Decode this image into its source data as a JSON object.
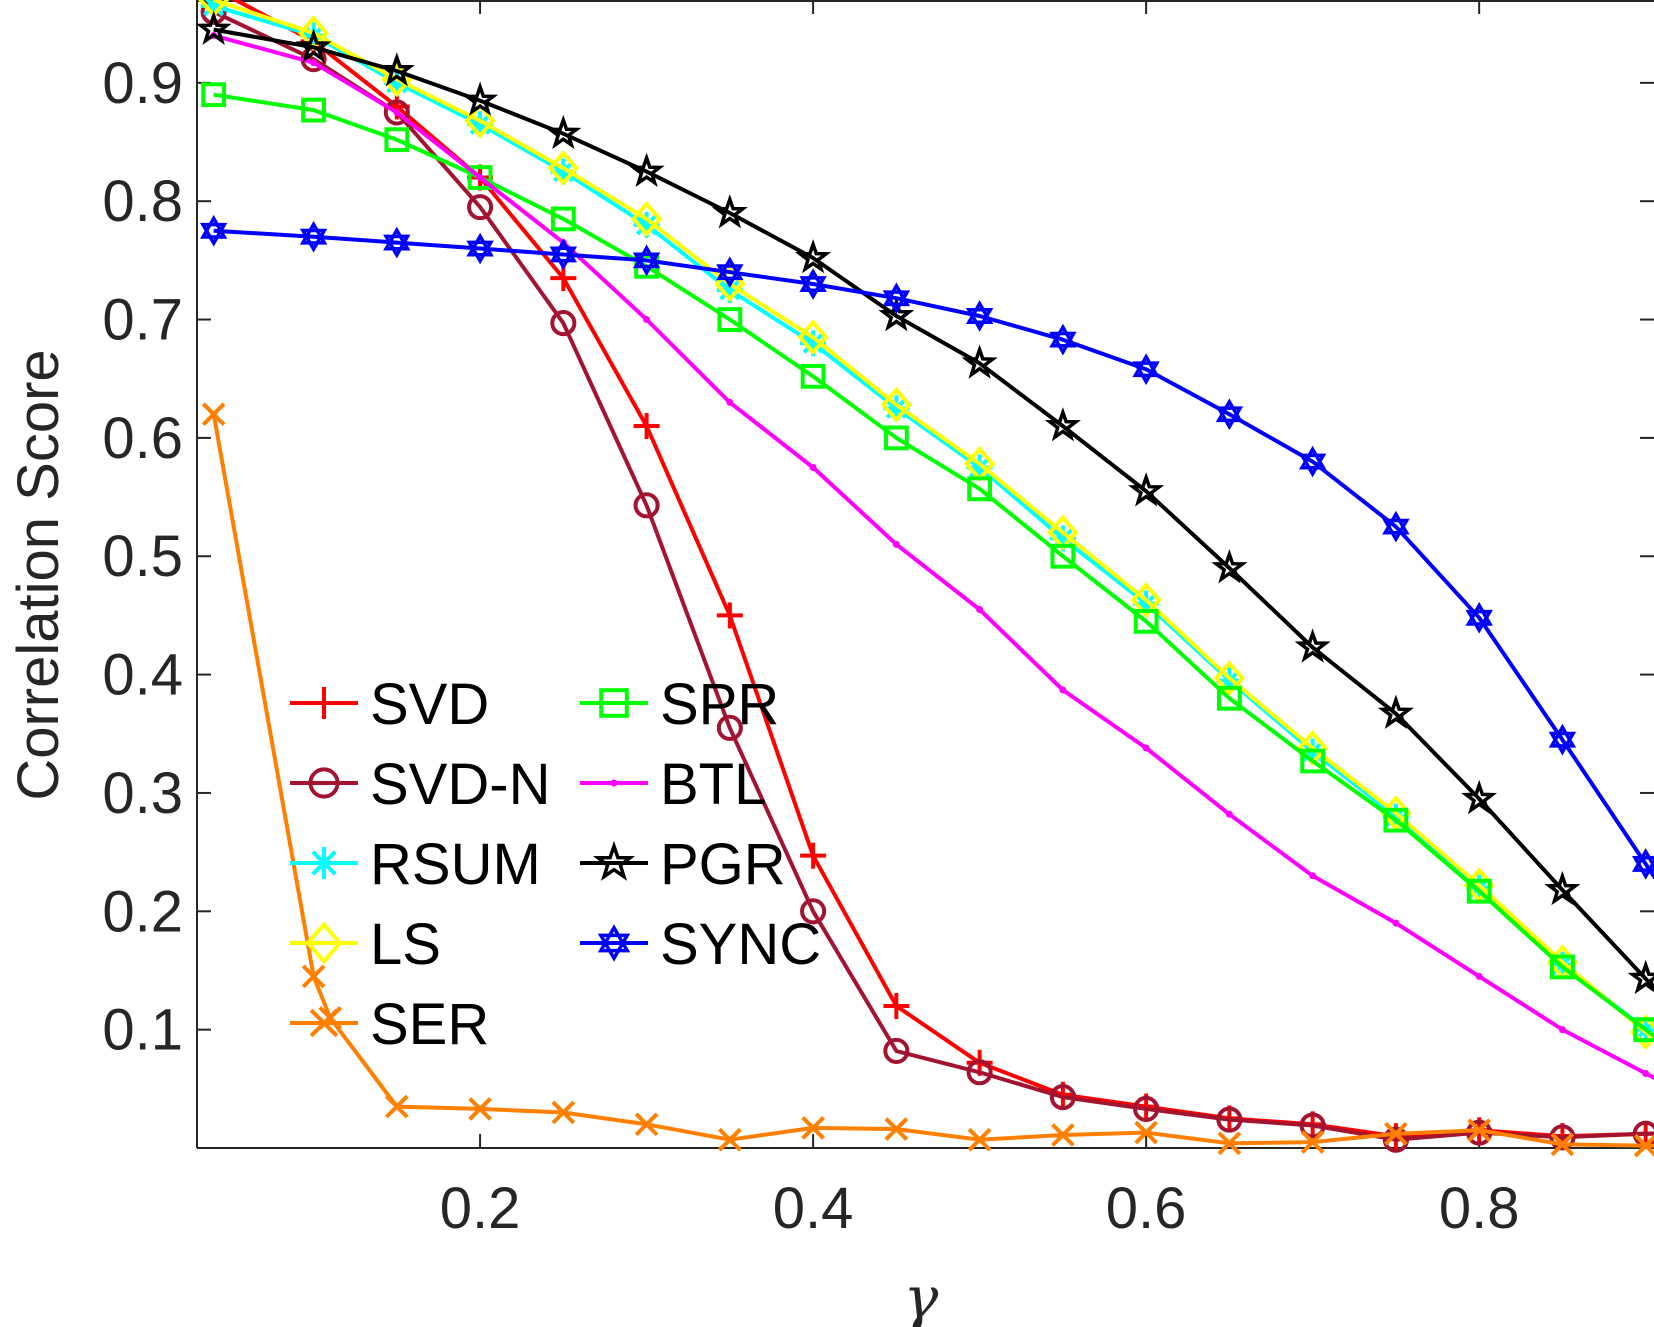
{
  "chart_data": {
    "type": "line",
    "xlabel": "γ",
    "ylabel": "Correlation Score",
    "xlim": [
      0.03,
      0.905
    ],
    "ylim": [
      0,
      0.97
    ],
    "xticks": [
      0.2,
      0.4,
      0.6,
      0.8
    ],
    "xtick_labels": [
      "0.2",
      "0.4",
      "0.6",
      "0.8"
    ],
    "yticks": [
      0.1,
      0.2,
      0.3,
      0.4,
      0.5,
      0.6,
      0.7,
      0.8,
      0.9
    ],
    "ytick_labels": [
      "0.1",
      "0.2",
      "0.3",
      "0.4",
      "0.5",
      "0.6",
      "0.7",
      "0.8",
      "0.9"
    ],
    "legend_position": "lower-left",
    "x": [
      0.04,
      0.1,
      0.15,
      0.2,
      0.25,
      0.3,
      0.35,
      0.4,
      0.45,
      0.5,
      0.55,
      0.6,
      0.65,
      0.7,
      0.75,
      0.8,
      0.85,
      0.9
    ],
    "series": [
      {
        "name": "SVD",
        "color": "#ff0000",
        "marker": "plus",
        "values": [
          0.98,
          0.935,
          0.88,
          0.82,
          0.735,
          0.61,
          0.45,
          0.247,
          0.12,
          0.072,
          0.045,
          0.035,
          0.025,
          0.02,
          0.01,
          0.015,
          0.01,
          0.012
        ]
      },
      {
        "name": "SVD-N",
        "color": "#a2142f",
        "marker": "circle",
        "values": [
          0.96,
          0.92,
          0.875,
          0.795,
          0.697,
          0.543,
          0.355,
          0.2,
          0.082,
          0.064,
          0.043,
          0.033,
          0.024,
          0.019,
          0.007,
          0.013,
          0.009,
          0.012
        ]
      },
      {
        "name": "RSUM",
        "color": "#00ffff",
        "marker": "asterisk",
        "values": [
          0.965,
          0.94,
          0.9,
          0.865,
          0.825,
          0.78,
          0.725,
          0.68,
          0.625,
          0.575,
          0.515,
          0.46,
          0.395,
          0.335,
          0.28,
          0.22,
          0.155,
          0.1
        ]
      },
      {
        "name": "LS",
        "color": "#ffff00",
        "marker": "diamond",
        "values": [
          0.97,
          0.942,
          0.903,
          0.868,
          0.828,
          0.785,
          0.73,
          0.685,
          0.628,
          0.578,
          0.52,
          0.463,
          0.397,
          0.338,
          0.283,
          0.222,
          0.157,
          0.098
        ]
      },
      {
        "name": "SER",
        "color": "#ff8000",
        "marker": "cross",
        "values": [
          0.62,
          0.145,
          0.035,
          0.033,
          0.03,
          0.02,
          0.007,
          0.017,
          0.016,
          0.007,
          0.011,
          0.013,
          0.004,
          0.005,
          0.012,
          0.015,
          0.003,
          0.002
        ],
        "extra_points": [
          {
            "x": 0.11,
            "y": 0.11
          }
        ]
      },
      {
        "name": "SPR",
        "color": "#00ff00",
        "marker": "square",
        "values": [
          0.89,
          0.877,
          0.852,
          0.82,
          0.785,
          0.745,
          0.7,
          0.652,
          0.6,
          0.557,
          0.5,
          0.445,
          0.38,
          0.327,
          0.277,
          0.217,
          0.153,
          0.1
        ]
      },
      {
        "name": "BTL",
        "color": "#ff00ff",
        "marker": "point",
        "values": [
          0.94,
          0.917,
          0.875,
          0.82,
          0.765,
          0.7,
          0.63,
          0.575,
          0.51,
          0.455,
          0.387,
          0.338,
          0.282,
          0.23,
          0.19,
          0.145,
          0.1,
          0.063
        ]
      },
      {
        "name": "PGR",
        "color": "#000000",
        "marker": "star",
        "values": [
          0.945,
          0.93,
          0.91,
          0.885,
          0.857,
          0.825,
          0.79,
          0.752,
          0.703,
          0.663,
          0.61,
          0.555,
          0.49,
          0.423,
          0.367,
          0.295,
          0.218,
          0.143
        ]
      },
      {
        "name": "SYNC",
        "color": "#0000ff",
        "marker": "hexagram",
        "values": [
          0.775,
          0.77,
          0.765,
          0.76,
          0.755,
          0.75,
          0.74,
          0.73,
          0.718,
          0.703,
          0.683,
          0.658,
          0.62,
          0.58,
          0.525,
          0.448,
          0.345,
          0.24
        ]
      }
    ]
  }
}
